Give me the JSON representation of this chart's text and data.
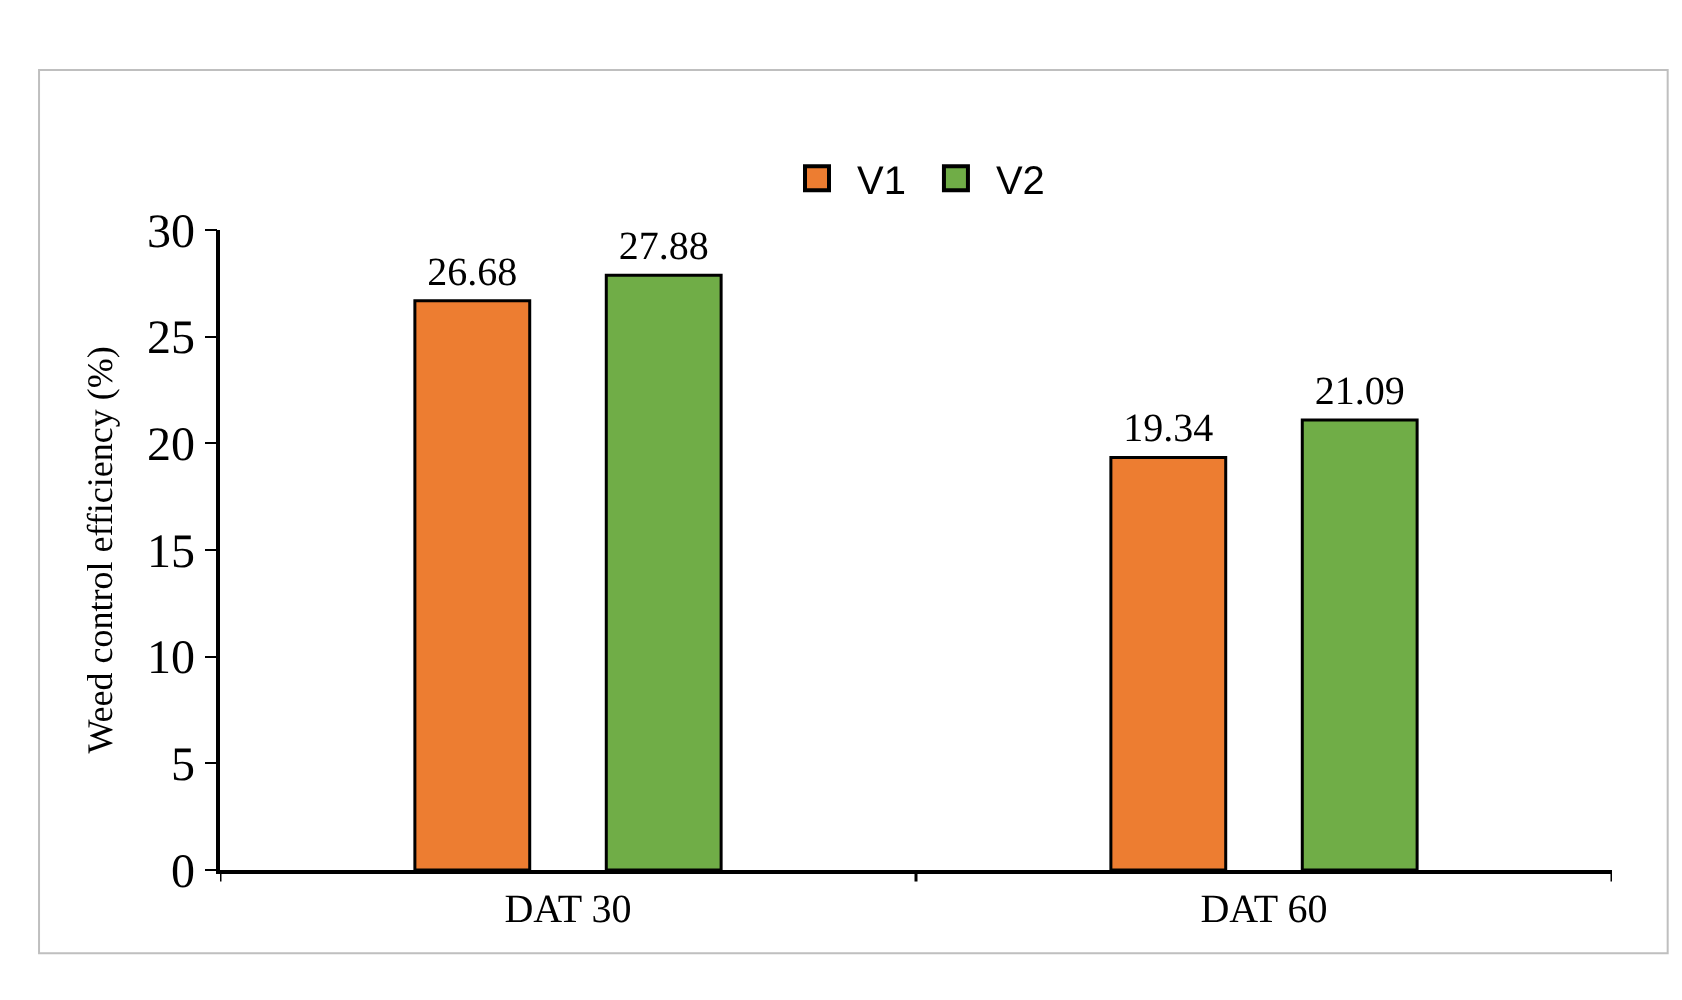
{
  "chart_data": {
    "type": "bar",
    "ylabel": "Weed control efficiency (%)",
    "categories": [
      "DAT 30",
      "DAT 60"
    ],
    "series": [
      {
        "name": "V1",
        "color": "#ed7d31",
        "values": [
          26.68,
          19.34
        ]
      },
      {
        "name": "V2",
        "color": "#70ad47",
        "values": [
          27.88,
          21.09
        ]
      }
    ],
    "ylim": [
      0,
      30
    ],
    "yticks": [
      0,
      5,
      10,
      15,
      20,
      25,
      30
    ],
    "grid": false,
    "legend": "top",
    "data_labels": true
  }
}
